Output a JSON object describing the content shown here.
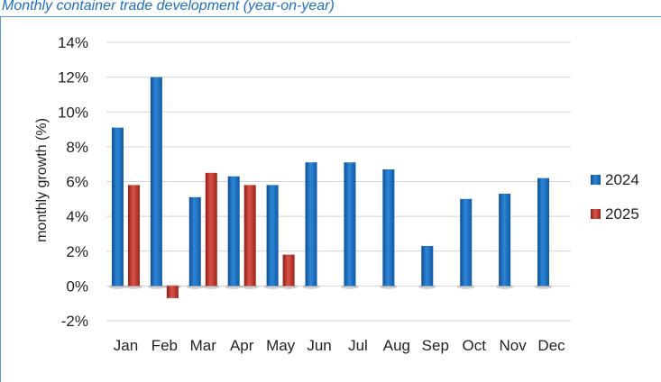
{
  "chart_data": {
    "type": "bar",
    "title": "Monthly container trade development (year-on-year)",
    "ylabel": "monthly growth (%)",
    "xlabel": "",
    "categories": [
      "Jan",
      "Feb",
      "Mar",
      "Apr",
      "May",
      "Jun",
      "Jul",
      "Aug",
      "Sep",
      "Oct",
      "Nov",
      "Dec"
    ],
    "ylim": [
      -2,
      14
    ],
    "yticks": [
      -2,
      0,
      2,
      4,
      6,
      8,
      10,
      12,
      14
    ],
    "ytick_labels": [
      "-2%",
      "0%",
      "2%",
      "4%",
      "6%",
      "8%",
      "10%",
      "12%",
      "14%"
    ],
    "grid": true,
    "legend_position": "right",
    "series": [
      {
        "name": "2024",
        "color": "#1f6fbf",
        "values": [
          9.1,
          12.0,
          5.1,
          6.3,
          5.8,
          7.1,
          7.1,
          6.7,
          2.3,
          5.0,
          5.3,
          6.2
        ]
      },
      {
        "name": "2025",
        "color": "#c0392b",
        "values": [
          5.8,
          -0.7,
          6.5,
          5.8,
          1.8,
          null,
          null,
          null,
          null,
          null,
          null,
          null
        ]
      }
    ]
  }
}
